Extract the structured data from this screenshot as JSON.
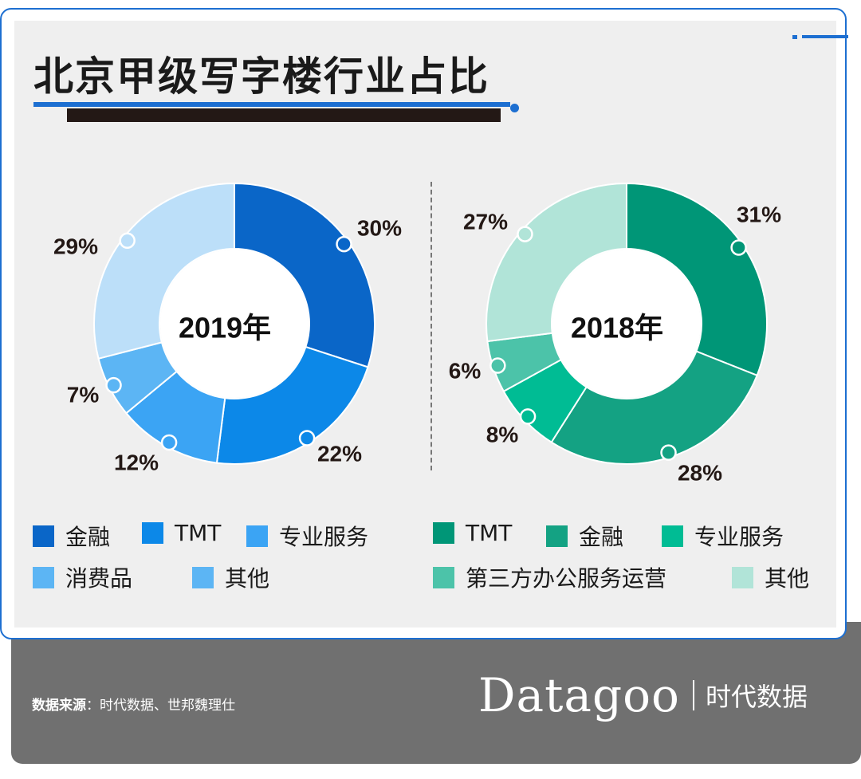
{
  "title": "北京甲级写字楼行业占比",
  "colors": {
    "accent": "#1d6fd1",
    "footer": "#707070"
  },
  "chart_data": [
    {
      "type": "pie",
      "subtype": "donut",
      "center_label": "2019年",
      "slices": [
        {
          "label": "金融",
          "value": 30,
          "display": "30%",
          "color": "#0a66c8"
        },
        {
          "label": "TMT",
          "value": 22,
          "display": "22%",
          "color": "#0c88e8"
        },
        {
          "label": "专业服务",
          "value": 12,
          "display": "12%",
          "color": "#3ba4f4"
        },
        {
          "label": "消费品",
          "value": 7,
          "display": "7%",
          "color": "#5cb5f4"
        },
        {
          "label": "其他",
          "value": 29,
          "display": "29%",
          "color": "#bcdff9"
        }
      ],
      "legend": [
        "金融",
        "TMT",
        "专业服务",
        "消费品",
        "其他"
      ]
    },
    {
      "type": "pie",
      "subtype": "donut",
      "center_label": "2018年",
      "slices": [
        {
          "label": "TMT",
          "value": 31,
          "display": "31%",
          "color": "#009677"
        },
        {
          "label": "金融",
          "value": 28,
          "display": "28%",
          "color": "#14a283"
        },
        {
          "label": "专业服务",
          "value": 8,
          "display": "8%",
          "color": "#00bc94"
        },
        {
          "label": "第三方办公服务运营",
          "value": 6,
          "display": "6%",
          "color": "#4cc3a9"
        },
        {
          "label": "其他",
          "value": 27,
          "display": "27%",
          "color": "#b1e4d8"
        }
      ],
      "legend": [
        "TMT",
        "金融",
        "专业服务",
        "第三方办公服务运营",
        "其他"
      ]
    }
  ],
  "footer": {
    "source_label": "数据来源",
    "source_sep": "：",
    "source_text": "时代数据、世邦魏理仕",
    "brand_logo": "Datagoo",
    "brand_cn": "时代数据"
  }
}
